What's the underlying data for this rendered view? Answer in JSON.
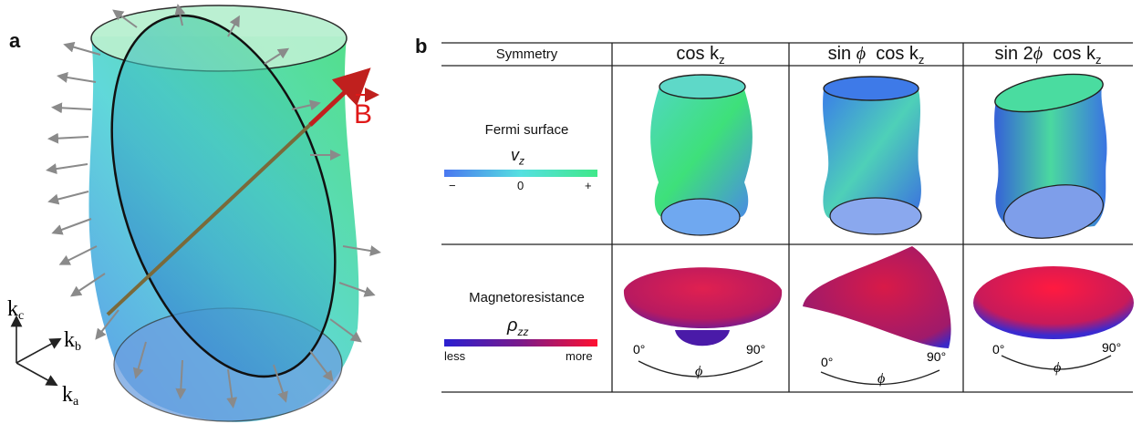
{
  "panel_a": {
    "label": "a",
    "field_label": "B",
    "axes": {
      "kc": "k",
      "kc_sub": "c",
      "kb": "k",
      "kb_sub": "b",
      "ka": "k",
      "ka_sub": "a"
    }
  },
  "panel_b": {
    "label": "b",
    "header": {
      "symmetry": "Symmetry",
      "col1_main": "cos k",
      "col1_sub": "z",
      "col2_a": "sin ",
      "col2_phi": "ϕ",
      "col2_b": "  cos k",
      "col2_sub": "z",
      "col3_a": "sin 2",
      "col3_phi": "ϕ",
      "col3_b": "  cos k",
      "col3_sub": "z"
    },
    "row1": {
      "title": "Fermi surface",
      "cbar_symbol": "v",
      "cbar_symbol_sub": "z",
      "ticks": [
        "−",
        "0",
        "+"
      ],
      "colors": [
        "#4a78f0",
        "#55e0e0",
        "#40e88a"
      ]
    },
    "row2": {
      "title": "Magnetoresistance",
      "cbar_symbol": "ρ",
      "cbar_symbol_sub": "zz",
      "ticks": [
        "less",
        "more"
      ],
      "colors": [
        "#2a1fd0",
        "#7a1a8a",
        "#ff1030"
      ],
      "angle_start": "0°",
      "angle_end": "90°",
      "angle_symbol": "ϕ"
    }
  }
}
